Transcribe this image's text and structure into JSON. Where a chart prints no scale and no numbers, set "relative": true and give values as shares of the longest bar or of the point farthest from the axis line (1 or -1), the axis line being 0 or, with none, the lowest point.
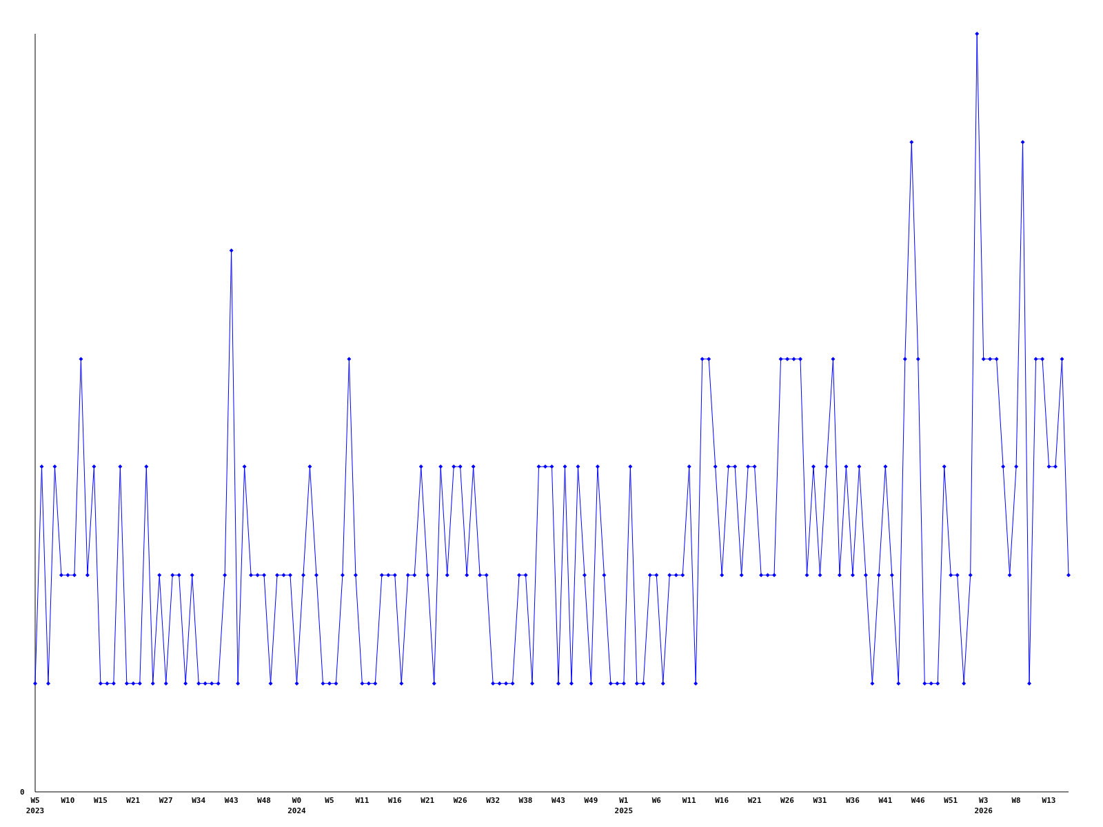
{
  "chart_data": {
    "type": "line",
    "relative": true,
    "marker": "diamond",
    "line_style": "solid",
    "annotations": [
      "0"
    ],
    "categories": [
      "W5\n2023",
      null,
      null,
      null,
      null,
      "W10",
      null,
      null,
      null,
      null,
      "W15",
      null,
      null,
      null,
      null,
      "W21",
      null,
      null,
      null,
      null,
      "W27",
      null,
      null,
      null,
      null,
      "W34",
      null,
      null,
      null,
      null,
      "W43",
      null,
      null,
      null,
      null,
      "W48",
      null,
      null,
      null,
      null,
      "W0\n2024",
      null,
      null,
      null,
      null,
      "W5",
      null,
      null,
      null,
      null,
      "W11",
      null,
      null,
      null,
      null,
      "W16",
      null,
      null,
      null,
      null,
      "W21",
      null,
      null,
      null,
      null,
      "W26",
      null,
      null,
      null,
      null,
      "W32",
      null,
      null,
      null,
      null,
      "W38",
      null,
      null,
      null,
      null,
      "W43",
      null,
      null,
      null,
      null,
      "W49",
      null,
      null,
      null,
      null,
      "W1\n2025",
      null,
      null,
      null,
      null,
      "W6",
      null,
      null,
      null,
      null,
      "W11",
      null,
      null,
      null,
      null,
      "W16",
      null,
      null,
      null,
      null,
      "W21",
      null,
      null,
      null,
      null,
      "W26",
      null,
      null,
      null,
      null,
      "W31",
      null,
      null,
      null,
      null,
      "W36",
      null,
      null,
      null,
      null,
      "W41",
      null,
      null,
      null,
      null,
      "W46",
      null,
      null,
      null,
      null,
      "W51",
      null,
      null,
      null,
      null,
      "W3\n2026",
      null,
      null,
      null,
      null,
      "W8",
      null,
      null,
      null,
      null,
      "W13",
      null,
      null,
      null
    ],
    "series": [
      {
        "color": "#0000ff",
        "values": [
          0.143,
          0.429,
          0.143,
          0.429,
          0.286,
          0.286,
          0.286,
          0.571,
          0.286,
          0.429,
          0.143,
          0.143,
          0.143,
          0.429,
          0.143,
          0.143,
          0.143,
          0.429,
          0.143,
          0.286,
          0.143,
          0.286,
          0.286,
          0.143,
          0.286,
          0.143,
          0.143,
          0.143,
          0.143,
          0.286,
          0.714,
          0.143,
          0.429,
          0.286,
          0.286,
          0.286,
          0.143,
          0.286,
          0.286,
          0.286,
          0.143,
          0.286,
          0.429,
          0.286,
          0.143,
          0.143,
          0.143,
          0.286,
          0.571,
          0.286,
          0.143,
          0.143,
          0.143,
          0.286,
          0.286,
          0.286,
          0.143,
          0.286,
          0.286,
          0.429,
          0.286,
          0.143,
          0.429,
          0.286,
          0.429,
          0.429,
          0.286,
          0.429,
          0.286,
          0.286,
          0.143,
          0.143,
          0.143,
          0.143,
          0.286,
          0.286,
          0.143,
          0.429,
          0.429,
          0.429,
          0.143,
          0.429,
          0.143,
          0.429,
          0.286,
          0.143,
          0.429,
          0.286,
          0.143,
          0.143,
          0.143,
          0.429,
          0.143,
          0.143,
          0.286,
          0.286,
          0.143,
          0.286,
          0.286,
          0.286,
          0.429,
          0.143,
          0.571,
          0.571,
          0.429,
          0.286,
          0.429,
          0.429,
          0.286,
          0.429,
          0.429,
          0.286,
          0.286,
          0.286,
          0.571,
          0.571,
          0.571,
          0.571,
          0.286,
          0.429,
          0.286,
          0.429,
          0.571,
          0.286,
          0.429,
          0.286,
          0.429,
          0.286,
          0.143,
          0.286,
          0.429,
          0.286,
          0.143,
          0.571,
          0.857,
          0.571,
          0.143,
          0.143,
          0.143,
          0.429,
          0.286,
          0.286,
          0.143,
          0.286,
          1,
          0.571,
          0.571,
          0.571,
          0.429,
          0.286,
          0.429,
          0.857,
          0.143,
          0.571,
          0.571,
          0.429,
          0.429,
          0.571,
          0.286
        ]
      }
    ]
  }
}
